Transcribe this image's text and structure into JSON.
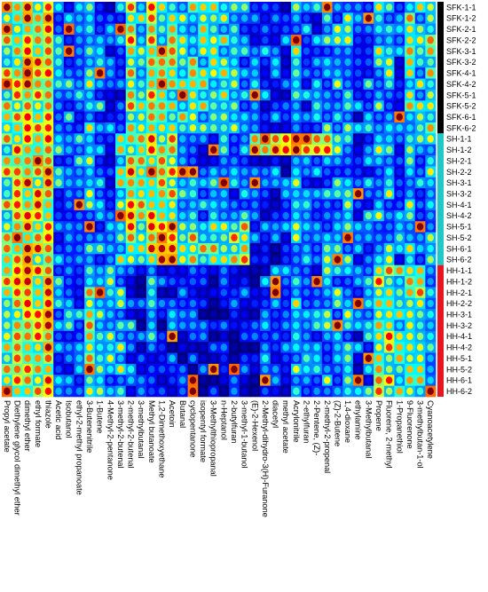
{
  "chart_data": {
    "type": "heatmap",
    "title": "",
    "xlabel": "",
    "ylabel": "",
    "colormap": "jet",
    "colormap_stops": [
      "#00007a",
      "#0000ff",
      "#0090ff",
      "#00ffff",
      "#ffff00",
      "#ff8000",
      "#ff0000",
      "#800000"
    ],
    "rows": [
      "SFK-1-1",
      "SFK-1-2",
      "SFK-2-1",
      "SFK-2-2",
      "SFK-3-1",
      "SFK-3-2",
      "SFK-4-1",
      "SFK-4-2",
      "SFK-5-1",
      "SFK-5-2",
      "SFK-6-1",
      "SFK-6-2",
      "SH-1-1",
      "SH-1-2",
      "SH-2-1",
      "SH-2-2",
      "SH-3-1",
      "SH-3-2",
      "SH-4-1",
      "SH-4-2",
      "SH-5-1",
      "SH-5-2",
      "SH-6-1",
      "SH-6-2",
      "HH-1-1",
      "HH-1-2",
      "HH-2-1",
      "HH-2-2",
      "HH-3-1",
      "HH-3-2",
      "HH-4-1",
      "HH-4-2",
      "HH-5-1",
      "HH-5-2",
      "HH-6-1",
      "HH-6-2"
    ],
    "groups": [
      {
        "name": "SFK",
        "color": "#000000"
      },
      {
        "name": "SH",
        "color": "#20c8c8"
      },
      {
        "name": "HH",
        "color": "#e8141e"
      }
    ],
    "columns": [
      "Propyl acetate",
      "Diethylene glycol dimethyl ether",
      "dimethyl ether",
      "ethyl formate",
      "thiazole",
      "Acetic acid",
      "Isobutanol",
      "ethyl-2-methyl propanoate",
      "3-Butenenitrile",
      "1-Butene",
      "4-Methyl-2-pentanone",
      "3-methyl-2-butenal",
      "2-methyl-2-butenal",
      "3-methylbutanal",
      "Methyl butanoate",
      "1,2-Dimethoxyethane",
      "Acetoin",
      "Butanal",
      "cyclopentanone",
      "isopentyl formate",
      "3-Methylthiopropanal",
      "n-Heptanol",
      "2-butylfuran",
      "3-methyl-1-butanol",
      "(E)-2-Hexenol",
      "2-Methyl-dihydro-3(H)-Furanone",
      "diacetyl",
      "methyl acetate",
      "Acrylonitrile",
      "2-ethylfuran",
      "2-Pentene, (Z)-",
      "2-methyl-2-propenal",
      "(Z)-2-Butene",
      "1,4-dioxane",
      "ethylamine",
      "3-Methylbutanal",
      "Propene",
      "Fluorene, 2-methyl",
      "1-Propanethiol",
      "9-Fluorenone",
      "3-methylbutan-1-ol",
      "Cyanoacetylene"
    ],
    "values": "Relative signal intensity per compound (column) and sample (row); drawn as colored cells"
  }
}
